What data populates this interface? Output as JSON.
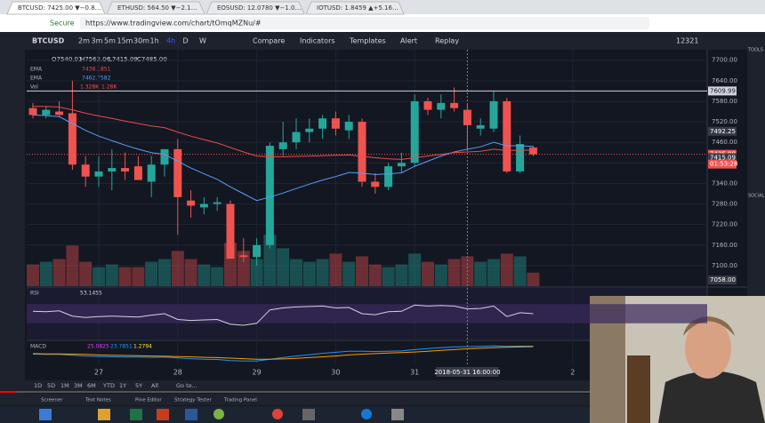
{
  "browser": {
    "tabs": [
      "BTCUSD: 7425.00 ▼−0.8…",
      "ETHUSD: 564.50 ▼−2.1…",
      "EOSUSD: 12.0780 ▼−1.0…",
      "IOTUSD: 1.8459 ▲+5.16…"
    ],
    "secure": "Secure",
    "url": "https://www.tradingview.com/chart/tOmqMZNu/#"
  },
  "toolbar": {
    "symbol": "BTCUSD",
    "intervals": [
      "2m",
      "3m",
      "5m",
      "15m",
      "30m",
      "1h",
      "4h",
      "D",
      "W"
    ],
    "buttons": [
      "Compare",
      "Indicators",
      "Templates",
      "Alert",
      "Replay"
    ],
    "counter": "12321"
  },
  "legend": {
    "ohlc": [
      "O7540.01",
      "H7563.06",
      "L7415.09",
      "C7485.00"
    ],
    "ema": [
      {
        "name": "EMA",
        "value": "7438.1851"
      },
      {
        "name": "EMA",
        "value": "7462.7582"
      }
    ],
    "vol": {
      "name": "Vol",
      "values": [
        "1.328K",
        "1.28K"
      ]
    }
  },
  "chart_data": {
    "type": "candlestick",
    "categories": [
      null,
      null,
      null,
      null,
      null,
      "27",
      null,
      null,
      null,
      null,
      null,
      "28",
      null,
      null,
      null,
      null,
      null,
      "29",
      null,
      null,
      null,
      null,
      null,
      "30",
      null,
      null,
      null,
      null,
      null,
      "31",
      null,
      null,
      null,
      null,
      null,
      null,
      null,
      null,
      null,
      null,
      null,
      "2"
    ],
    "open": [
      7560,
      7540,
      7550,
      7545,
      7395,
      7360,
      7375,
      7385,
      7390,
      7345,
      7395,
      7440,
      7290,
      7270,
      7280,
      7280,
      7130,
      7125,
      7160,
      7440,
      7460,
      7490,
      7500,
      7530,
      7495,
      7520,
      7345,
      7330,
      7390,
      7400,
      7580,
      7555,
      7575,
      7555,
      7500,
      7500,
      7580,
      7375,
      7445,
      null,
      null,
      null
    ],
    "high": [
      7575,
      7565,
      7580,
      7640,
      7420,
      7420,
      7440,
      7430,
      7420,
      7420,
      7440,
      7470,
      7320,
      7300,
      7300,
      7290,
      7180,
      7180,
      7460,
      7520,
      7530,
      7530,
      7540,
      7550,
      7540,
      7530,
      7370,
      7400,
      7430,
      7600,
      7590,
      7600,
      7620,
      7570,
      7530,
      7610,
      7590,
      7480,
      7450,
      null,
      null,
      null
    ],
    "low": [
      7530,
      7530,
      7535,
      7380,
      7330,
      7330,
      7320,
      7350,
      7350,
      7300,
      7360,
      7190,
      7240,
      7250,
      7260,
      7120,
      7110,
      7100,
      7150,
      7420,
      7440,
      7460,
      7470,
      7480,
      7470,
      7330,
      7310,
      7320,
      7370,
      7390,
      7540,
      7530,
      7550,
      7440,
      7480,
      7490,
      7370,
      7370,
      7420,
      null,
      null,
      null
    ],
    "close": [
      7540,
      7555,
      7540,
      7395,
      7360,
      7375,
      7385,
      7375,
      7350,
      7395,
      7440,
      7300,
      7275,
      7280,
      7285,
      7120,
      7125,
      7160,
      7450,
      7460,
      7490,
      7500,
      7530,
      7500,
      7520,
      7345,
      7330,
      7390,
      7400,
      7580,
      7555,
      7575,
      7560,
      7510,
      7510,
      7580,
      7375,
      7455,
      7425,
      null,
      null,
      null
    ],
    "volume": [
      0.8,
      0.9,
      1.0,
      1.5,
      0.9,
      0.7,
      0.8,
      0.7,
      0.7,
      0.9,
      1.0,
      1.3,
      1.0,
      0.8,
      0.7,
      1.6,
      1.3,
      1.0,
      1.9,
      1.4,
      1.0,
      0.9,
      1.0,
      1.2,
      0.9,
      1.1,
      0.8,
      0.7,
      0.8,
      1.2,
      0.9,
      0.8,
      1.0,
      1.1,
      0.9,
      1.0,
      1.2,
      1.1,
      0.5,
      null,
      null,
      null
    ],
    "ema_fast": [
      7540,
      7538,
      7535,
      7515,
      7495,
      7478,
      7465,
      7452,
      7440,
      7430,
      7425,
      7405,
      7385,
      7368,
      7352,
      7330,
      7310,
      7290,
      7300,
      7312,
      7325,
      7338,
      7350,
      7360,
      7372,
      7370,
      7366,
      7368,
      7371,
      7390,
      7405,
      7420,
      7432,
      7440,
      7447,
      7460,
      7450,
      7450,
      7448,
      null,
      null,
      null
    ],
    "ema_slow": [
      7565,
      7565,
      7563,
      7555,
      7545,
      7537,
      7530,
      7522,
      7515,
      7508,
      7503,
      7490,
      7478,
      7468,
      7458,
      7445,
      7432,
      7420,
      7418,
      7418,
      7419,
      7420,
      7421,
      7422,
      7423,
      7419,
      7415,
      7412,
      7410,
      7415,
      7420,
      7425,
      7430,
      7432,
      7434,
      7440,
      7436,
      7437,
      7437,
      null,
      null,
      null
    ],
    "up_color": "#26a69a",
    "down_color": "#ef5350",
    "ema_fast_color": "#5b9cf6",
    "ema_slow_color": "#e84b4b",
    "ylim": [
      7040,
      7720
    ],
    "yticks": [
      {
        "value": 7700,
        "label": "7700.00"
      },
      {
        "value": 7640,
        "label": "7640.00"
      },
      {
        "value": 7580,
        "label": "7580.00"
      },
      {
        "value": 7520,
        "label": "7520.00"
      },
      {
        "value": 7460,
        "label": "7460.00"
      },
      {
        "value": 7400,
        "label": "7400.00"
      },
      {
        "value": 7340,
        "label": "7340.00"
      },
      {
        "value": 7280,
        "label": "7280.00"
      },
      {
        "value": 7220,
        "label": "7220.00"
      },
      {
        "value": 7160,
        "label": "7160.00"
      },
      {
        "value": 7100,
        "label": "7100.00"
      }
    ],
    "markers": [
      7609.99,
      7492.25,
      {
        "value": 7425,
        "label": "7425.00"
      },
      7415.09,
      {
        "value": 7058,
        "label": "7058.00"
      }
    ],
    "countdown": "01:53:28",
    "volume_lim": [
      0,
      4
    ],
    "crosshair": "2018-05-31 16:00:00",
    "rsi": {
      "name": "RSI",
      "value_text": "53.1455",
      "ylim": [
        0,
        100
      ],
      "band": [
        30,
        70
      ],
      "values": [
        55,
        54,
        56,
        45,
        42,
        44,
        45,
        44,
        43,
        47,
        50,
        38,
        36,
        37,
        38,
        28,
        26,
        30,
        58,
        62,
        64,
        65,
        66,
        62,
        63,
        50,
        48,
        54,
        55,
        68,
        66,
        67,
        66,
        60,
        61,
        66,
        44,
        52,
        50,
        null,
        null,
        null
      ]
    },
    "macd": {
      "name": "MACD",
      "value_texts": [
        "25.0825",
        "23.7851",
        "1.2794"
      ],
      "ylim": [
        -40,
        40
      ],
      "macd": [
        -5,
        -6,
        -6,
        -9,
        -12,
        -14,
        -15,
        -16,
        -16,
        -17,
        -16,
        -19,
        -22,
        -24,
        -25,
        -29,
        -31,
        -31,
        -24,
        -18,
        -12,
        -7,
        -2,
        2,
        6,
        6,
        5,
        6,
        7,
        12,
        16,
        19,
        22,
        23,
        24,
        26,
        24,
        25,
        25,
        null,
        null,
        null
      ],
      "signal": [
        -3,
        -4,
        -4,
        -5,
        -6,
        -8,
        -9,
        -10,
        -11,
        -12,
        -13,
        -14,
        -15,
        -17,
        -18,
        -20,
        -22,
        -24,
        -24,
        -23,
        -21,
        -18,
        -15,
        -12,
        -8,
        -5,
        -3,
        -1,
        1,
        3,
        6,
        9,
        12,
        15,
        17,
        19,
        21,
        22,
        23,
        null,
        null,
        null
      ]
    }
  },
  "ranges": [
    "1D",
    "5D",
    "1M",
    "3M",
    "6M",
    "YTD",
    "1Y",
    "5Y",
    "All"
  ],
  "goto": "Go to...",
  "footer_tabs": [
    "Screener",
    "Text Notes",
    "Pine Editor",
    "Strategy Tester",
    "Trading Panel"
  ],
  "side": [
    "TOOLS",
    "SOCIAL"
  ]
}
